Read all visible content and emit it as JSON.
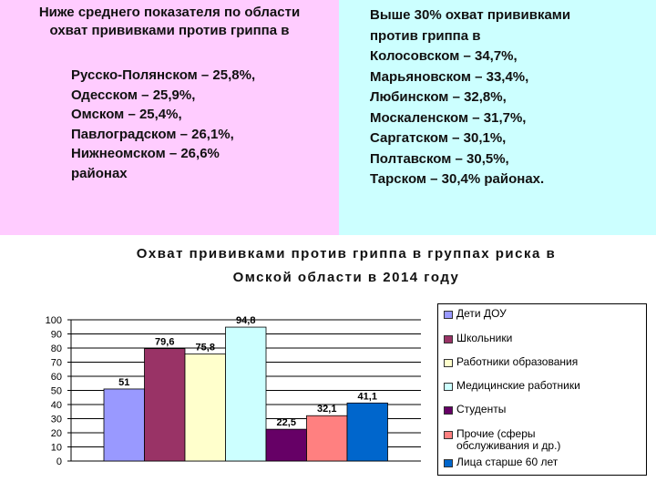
{
  "left_panel": {
    "heading_line1": "Ниже среднего показателя по области",
    "heading_line2": "охват прививками против гриппа в",
    "items": [
      "Русско-Полянском – 25,8%,",
      "Одесском – 25,9%,",
      "Омском – 25,4%,",
      "Павлоградском – 26,1%,",
      "Нижнеомском – 26,6%",
      "районах"
    ]
  },
  "right_panel": {
    "lines": [
      "Выше 30% охват прививками",
      "против гриппа в",
      "Колосовском – 34,7%,",
      "Марьяновском – 33,4%,",
      "Любинском – 32,8%,",
      "Москаленском – 31,7%,",
      "Саргатском – 30,1%,",
      "Полтавском – 30,5%,",
      "Тарском – 30,4% районах."
    ]
  },
  "chart_data": {
    "type": "bar",
    "title": "Охват прививками против гриппа в группах риска в Омской области в 2014 году",
    "title_line1": "Охват прививками против гриппа в группах риска в",
    "title_line2": "Омской области в 2014 году",
    "categories": [
      "Дети ДОУ",
      "Школьники",
      "Работники образования",
      "Медицинские работники",
      "Студенты",
      "Прочие (сферы обслуживания и др.)",
      "Лица старше 60 лет"
    ],
    "values": [
      51,
      79.6,
      75.8,
      94.8,
      22.5,
      32.1,
      41.1
    ],
    "labels": [
      "51",
      "79,6",
      "75,8",
      "94,8",
      "22,5",
      "32,1",
      "41,1"
    ],
    "colors": [
      "#9999ff",
      "#993366",
      "#ffffcc",
      "#ccffff",
      "#660066",
      "#ff8080",
      "#0066cc"
    ],
    "ylim": [
      0,
      100
    ],
    "yticks": [
      "0",
      "10",
      "20",
      "30",
      "40",
      "50",
      "60",
      "70",
      "80",
      "90",
      "100"
    ],
    "grid": true,
    "legend": "right"
  }
}
